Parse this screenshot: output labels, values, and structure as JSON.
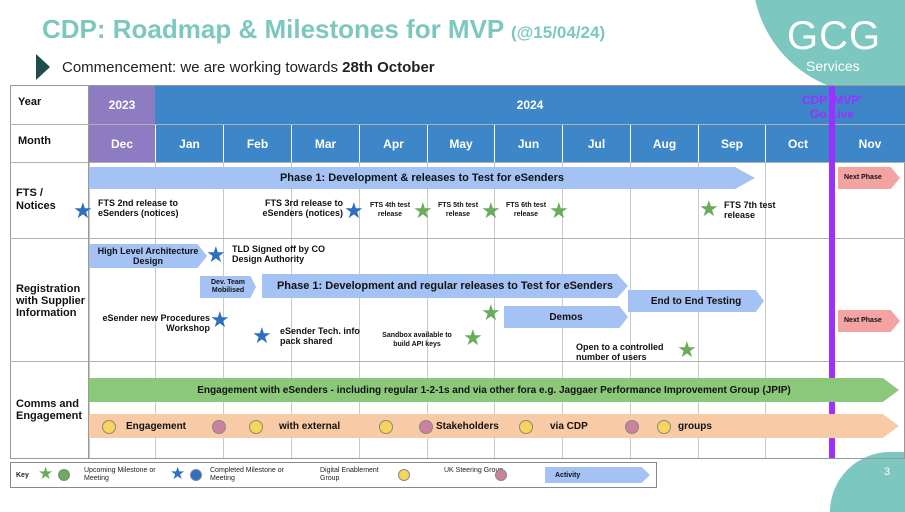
{
  "title": {
    "main": "CDP: Roadmap & Milestones for MVP",
    "date": "(@15/04/24)"
  },
  "subtitle": {
    "prefix": "Commencement: we are working towards ",
    "highlight": "28th October"
  },
  "logo": {
    "name": "GCG",
    "sub": "Services"
  },
  "page_number": "3",
  "header": {
    "year_label": "Year",
    "month_label": "Month",
    "year_2023": "2023",
    "year_2024": "2024",
    "months": [
      "Dec",
      "Jan",
      "Feb",
      "Mar",
      "Apr",
      "May",
      "Jun",
      "Jul",
      "Aug",
      "Sep",
      "Oct",
      "Nov"
    ],
    "golive": "CDP 'MVP' Go Live"
  },
  "rows": {
    "fts": "FTS / Notices",
    "reg": "Registration with Supplier Information",
    "comms": "Comms and Engagement"
  },
  "fts": {
    "phase1": "Phase 1: Development & releases to Test for eSenders",
    "next_phase": "Next Phase",
    "m1": "FTS 2nd release to eSenders (notices)",
    "m2": "FTS 3rd release to eSenders (notices)",
    "m3": "FTS 4th test release",
    "m4": "FTS 5th test release",
    "m5": "FTS 6th test release",
    "m6": "FTS 7th test release"
  },
  "reg": {
    "hla": "High Level Architecture Design",
    "tld": "TLD Signed off by CO Design Authority",
    "devteam": "Dev. Team Mobilised",
    "phase1": "Phase 1: Development and regular releases to Test for eSenders",
    "e2e": "End to End Testing",
    "workshop": "eSender new Procedures Workshop",
    "techpack": "eSender Tech. info pack shared",
    "demos": "Demos",
    "sandbox": "Sandbox available to build API keys",
    "controlled": "Open to a controlled number of users",
    "next_phase": "Next Phase"
  },
  "comms": {
    "engagement": "Engagement with eSenders - including regular 1-2-1s and via other fora e.g. Jaggaer Performance Improvement Group (JPIP)",
    "w1": "Engagement",
    "w2": "with external",
    "w3": "Stakeholders",
    "w4": "via CDP",
    "w5": "groups"
  },
  "key": {
    "label": "Key",
    "upcoming": "Upcoming Milestone or Meeting",
    "completed": "Completed Milestone or Meeting",
    "digital": "Digital Enablement Group",
    "steering": "UK Steering Group",
    "activity": "Activity"
  },
  "colors": {
    "teal": "#7cc7bf",
    "header_blue": "#3d87c8",
    "year2023": "#8e7cc3",
    "activity_blue": "#a4c2f4",
    "green_bar": "#8bc87a",
    "peach_bar": "#f8cba6",
    "next_phase": "#f4a3a3",
    "golive_purple": "#9b30ff",
    "star_blue": "#2e6fc0",
    "star_green": "#6aab5c",
    "dot_yellow": "#f7d55a",
    "dot_mauve": "#c9839f"
  }
}
